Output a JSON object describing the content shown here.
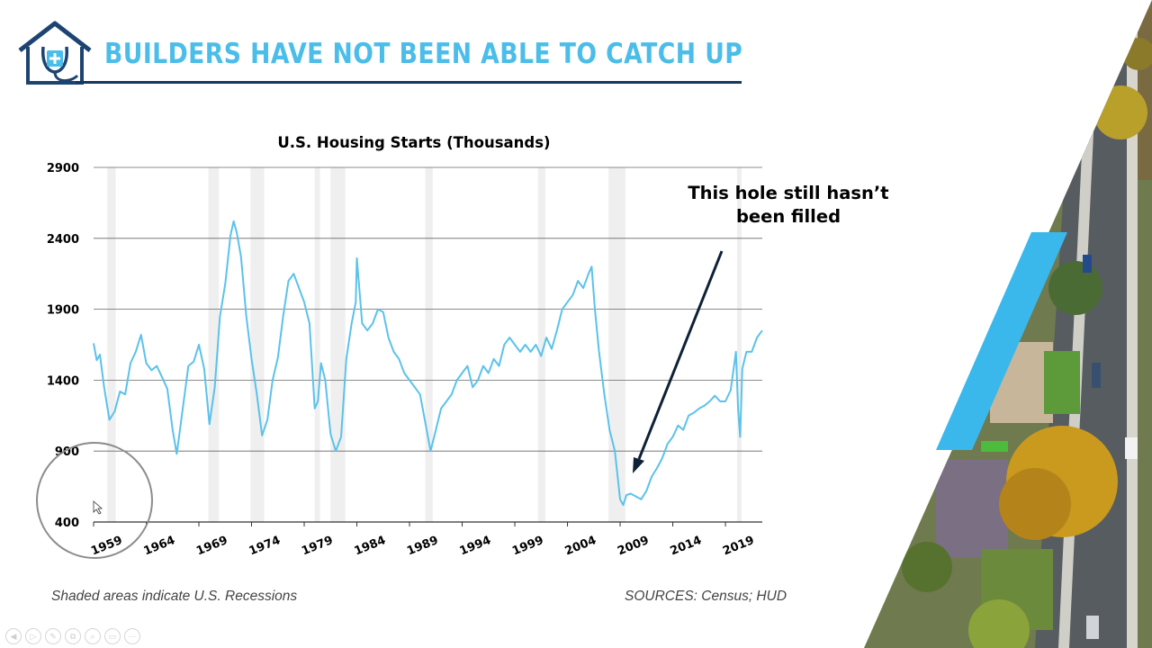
{
  "slide": {
    "title": "BUILDERS HAVE NOT BEEN ABLE TO CATCH UP",
    "footnote": "Shaded areas indicate U.S. Recessions",
    "sources": "SOURCES: Census; HUD",
    "annotation_lines": [
      "This hole still hasn’t",
      "been filled"
    ],
    "logo_icon": "house-stethoscope-icon",
    "colors": {
      "title": "#4bbde9",
      "rule": "#14385f",
      "logo": "#1d4470",
      "logo_plus": "#4bbde9",
      "series": "#5bc2ea",
      "arrow": "#0e2135",
      "recession": "#efefef",
      "accent": "#3ab8ec"
    }
  },
  "player_controls": [
    "prev-icon",
    "play-icon",
    "pen-icon",
    "copy-icon",
    "zoom-icon",
    "screen-icon",
    "more-icon"
  ],
  "chart_data": {
    "type": "line",
    "title": "U.S. Housing Starts (Thousands)",
    "xlabel": "",
    "ylabel": "",
    "ylim": [
      400,
      2900
    ],
    "xlim": [
      1959,
      2022.5
    ],
    "y_ticks": [
      400,
      900,
      1400,
      1900,
      2400,
      2900
    ],
    "x_ticks": [
      "1959",
      "1964",
      "1969",
      "1974",
      "1979",
      "1984",
      "1989",
      "1994",
      "1999",
      "2004",
      "2009",
      "2014",
      "2019"
    ],
    "grid": "horizontal",
    "recessions": [
      [
        1960.3,
        1961.1
      ],
      [
        1969.9,
        1970.9
      ],
      [
        1973.9,
        1975.2
      ],
      [
        1980.0,
        1980.5
      ],
      [
        1981.5,
        1982.9
      ],
      [
        1990.5,
        1991.2
      ],
      [
        2001.2,
        2001.9
      ],
      [
        2007.9,
        2009.5
      ],
      [
        2020.1,
        2020.4
      ]
    ],
    "series": [
      {
        "x": [
          1959.0,
          1959.3,
          1959.6,
          1960.0,
          1960.5,
          1961.0,
          1961.5,
          1962.0,
          1962.5,
          1963.0,
          1963.5,
          1964.0,
          1964.5,
          1965.0,
          1965.5,
          1966.0,
          1966.5,
          1966.9,
          1967.5,
          1968.0,
          1968.5,
          1969.0,
          1969.5,
          1970.0,
          1970.5,
          1971.0,
          1971.5,
          1972.0,
          1972.3,
          1972.6,
          1973.0,
          1973.5,
          1974.0,
          1974.5,
          1975.0,
          1975.5,
          1976.0,
          1976.5,
          1977.0,
          1977.5,
          1978.0,
          1978.5,
          1979.0,
          1979.5,
          1980.0,
          1980.3,
          1980.6,
          1981.0,
          1981.5,
          1982.0,
          1982.5,
          1983.0,
          1983.5,
          1983.9,
          1984.0,
          1984.5,
          1985.0,
          1985.5,
          1986.0,
          1986.5,
          1987.0,
          1987.5,
          1988.0,
          1988.5,
          1989.0,
          1989.5,
          1990.0,
          1990.5,
          1991.0,
          1991.5,
          1992.0,
          1992.5,
          1993.0,
          1993.5,
          1994.0,
          1994.5,
          1995.0,
          1995.5,
          1996.0,
          1996.5,
          1997.0,
          1997.5,
          1998.0,
          1998.5,
          1999.0,
          1999.5,
          2000.0,
          2000.5,
          2001.0,
          2001.5,
          2002.0,
          2002.5,
          2003.0,
          2003.5,
          2004.0,
          2004.5,
          2005.0,
          2005.5,
          2006.0,
          2006.3,
          2006.6,
          2007.0,
          2007.5,
          2008.0,
          2008.5,
          2009.0,
          2009.3,
          2009.6,
          2010.0,
          2010.5,
          2011.0,
          2011.5,
          2012.0,
          2012.5,
          2013.0,
          2013.5,
          2014.0,
          2014.5,
          2015.0,
          2015.5,
          2016.0,
          2016.5,
          2017.0,
          2017.5,
          2018.0,
          2018.5,
          2019.0,
          2019.5,
          2020.0,
          2020.2,
          2020.4,
          2020.6,
          2021.0,
          2021.5,
          2022.0,
          2022.5
        ],
        "values": [
          1660,
          1540,
          1580,
          1350,
          1120,
          1180,
          1320,
          1300,
          1520,
          1600,
          1720,
          1520,
          1470,
          1500,
          1420,
          1340,
          1050,
          880,
          1220,
          1500,
          1530,
          1650,
          1480,
          1090,
          1350,
          1850,
          2080,
          2420,
          2520,
          2440,
          2270,
          1850,
          1550,
          1300,
          1010,
          1120,
          1400,
          1560,
          1850,
          2100,
          2150,
          2050,
          1950,
          1800,
          1200,
          1250,
          1520,
          1400,
          1020,
          900,
          1000,
          1550,
          1800,
          1950,
          2260,
          1800,
          1750,
          1800,
          1900,
          1880,
          1700,
          1600,
          1550,
          1450,
          1400,
          1350,
          1300,
          1100,
          900,
          1050,
          1200,
          1250,
          1300,
          1400,
          1450,
          1500,
          1350,
          1400,
          1500,
          1450,
          1550,
          1500,
          1650,
          1700,
          1650,
          1600,
          1650,
          1600,
          1650,
          1570,
          1700,
          1620,
          1750,
          1900,
          1950,
          2000,
          2100,
          2050,
          2150,
          2200,
          1900,
          1600,
          1300,
          1050,
          900,
          560,
          520,
          590,
          600,
          580,
          560,
          620,
          720,
          780,
          850,
          950,
          1000,
          1080,
          1050,
          1150,
          1170,
          1200,
          1220,
          1250,
          1290,
          1250,
          1250,
          1330,
          1600,
          1200,
          1000,
          1480,
          1600,
          1600,
          1700,
          1750
        ]
      }
    ]
  }
}
